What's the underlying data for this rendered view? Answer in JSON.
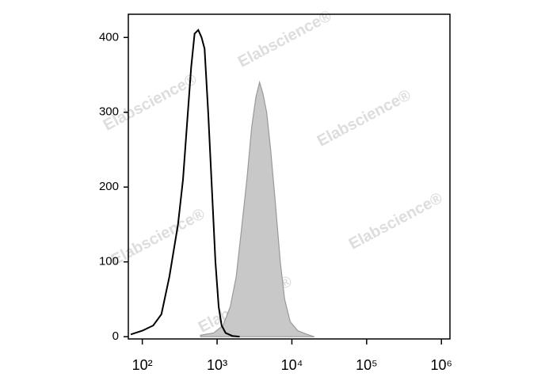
{
  "chart_data": {
    "type": "histogram-line",
    "watermark": "Elabscience®",
    "xscale": "log",
    "xlim": [
      65,
      1300000
    ],
    "xticks": [
      {
        "value": 100,
        "label": "10²"
      },
      {
        "value": 1000,
        "label": "10³"
      },
      {
        "value": 10000,
        "label": "10⁴"
      },
      {
        "value": 100000,
        "label": "10⁵"
      },
      {
        "value": 1000000,
        "label": "10⁶"
      }
    ],
    "ylim": [
      -3,
      431
    ],
    "yticks": [
      0,
      100,
      200,
      300,
      400
    ],
    "series": [
      {
        "color": "#999999",
        "fill": "#c8c8c8",
        "x": [
          600,
          900,
          1200,
          1500,
          1800,
          2100,
          2500,
          2900,
          3300,
          3700,
          4100,
          4600,
          5200,
          6000,
          7000,
          8000,
          9500,
          12000,
          16000,
          20000
        ],
        "values": [
          2,
          5,
          15,
          40,
          80,
          140,
          210,
          280,
          320,
          340,
          325,
          300,
          250,
          180,
          100,
          50,
          20,
          8,
          3,
          0
        ]
      },
      {
        "color": "#000000",
        "x": [
          70,
          100,
          140,
          180,
          230,
          300,
          350,
          400,
          450,
          500,
          560,
          620,
          680,
          760,
          850,
          950,
          1050,
          1150,
          1300,
          1600,
          2000
        ],
        "values": [
          3,
          8,
          15,
          30,
          80,
          150,
          210,
          290,
          360,
          405,
          410,
          400,
          385,
          300,
          200,
          100,
          40,
          15,
          5,
          1,
          0
        ]
      }
    ]
  }
}
